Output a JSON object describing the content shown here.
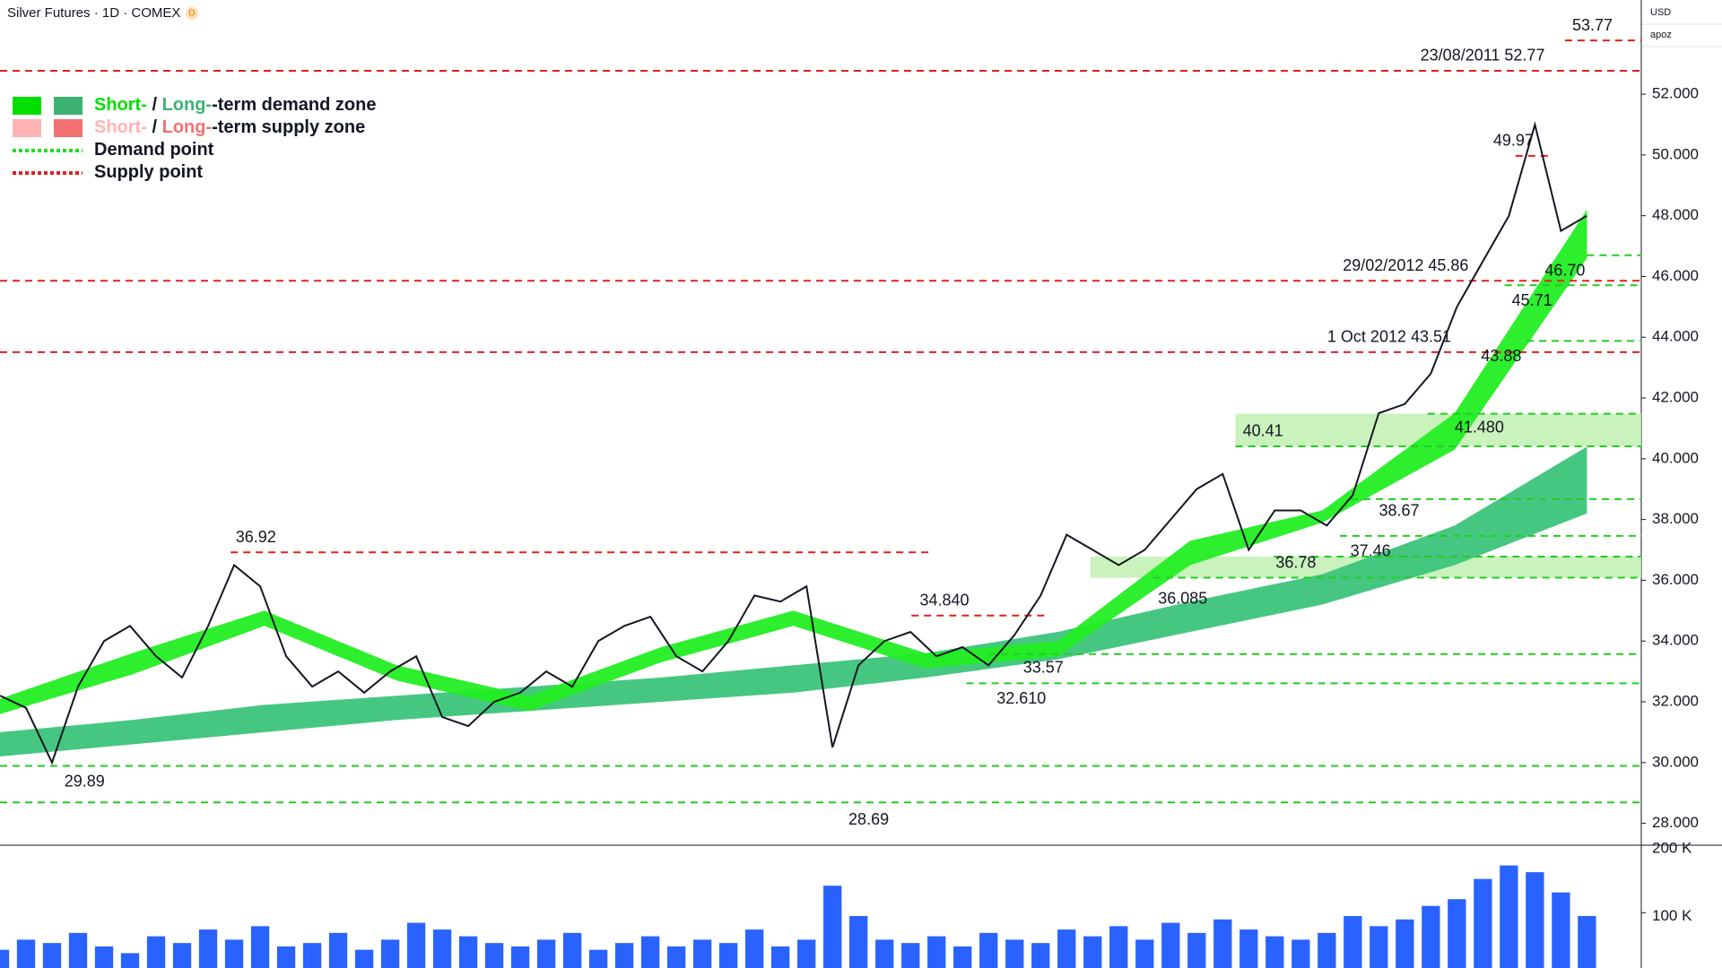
{
  "header": {
    "symbol": "Silver Futures · 1D · COMEX",
    "badge": "D",
    "currency": "USD",
    "account": "apoz"
  },
  "legend": [
    {
      "parts": [
        {
          "text": "Short-",
          "color": "#00e000"
        },
        {
          "text": " / ",
          "color": "#131722"
        },
        {
          "text": "Long-",
          "color": "#3cb371"
        },
        {
          "text": "-term demand zone",
          "color": "#131722"
        }
      ],
      "swatches": [
        "#00e000",
        "#3cb371"
      ]
    },
    {
      "parts": [
        {
          "text": "Short-",
          "color": "#ffb3b3"
        },
        {
          "text": " / ",
          "color": "#131722"
        },
        {
          "text": "Long-",
          "color": "#f27070"
        },
        {
          "text": "-term supply zone",
          "color": "#131722"
        }
      ],
      "swatches": [
        "#ffb3b3",
        "#f27070"
      ]
    },
    {
      "parts": [
        {
          "text": "Demand point",
          "color": "#131722"
        }
      ],
      "dash": "#22dd22"
    },
    {
      "parts": [
        {
          "text": "Supply point",
          "color": "#131722"
        }
      ],
      "dash": "#e02020"
    }
  ],
  "chart_data": [
    {
      "type": "line",
      "color": "#131722",
      "values": [
        32.2,
        31.8,
        30.0,
        32.5,
        34.0,
        34.5,
        33.5,
        32.8,
        34.5,
        36.5,
        35.8,
        33.5,
        32.5,
        33.0,
        32.3,
        33.0,
        33.5,
        31.5,
        31.2,
        32.0,
        32.3,
        33.0,
        32.5,
        34.0,
        34.5,
        34.8,
        33.5,
        33.0,
        34.0,
        35.5,
        35.3,
        35.8,
        30.5,
        33.2,
        34.0,
        34.3,
        33.5,
        33.8,
        33.2,
        34.2,
        35.5,
        37.5,
        37.0,
        36.5,
        37.0,
        38.0,
        39.0,
        39.5,
        37.0,
        38.3,
        38.3,
        37.8,
        38.8,
        41.5,
        41.8,
        42.8,
        45.0,
        46.5,
        48.0,
        51.0,
        47.5,
        48.0
      ],
      "bands": [
        {
          "color": "#3cc47a",
          "upper": [
            31.0,
            31.4,
            31.9,
            32.2,
            32.5,
            32.8,
            33.2,
            33.6,
            34.3,
            35.3,
            36.2,
            37.8,
            40.4
          ],
          "lower": [
            30.2,
            30.6,
            31.0,
            31.4,
            31.7,
            32.0,
            32.3,
            32.8,
            33.4,
            34.3,
            35.2,
            36.5,
            38.2
          ]
        },
        {
          "color": "#22ee22",
          "upper": [
            32.1,
            33.6,
            35.0,
            33.2,
            32.2,
            33.8,
            35.0,
            33.6,
            34.0,
            37.3,
            38.3,
            41.5,
            48.2
          ],
          "lower": [
            31.6,
            32.9,
            34.5,
            32.7,
            31.7,
            33.3,
            34.5,
            33.1,
            33.5,
            36.5,
            37.9,
            40.3,
            46.6
          ]
        }
      ],
      "zones": [
        {
          "low": 40.41,
          "high": 41.48,
          "color": "#bff0b0"
        },
        {
          "low": 36.085,
          "high": 36.78,
          "color": "#bff0b0"
        }
      ],
      "supply_levels": [
        {
          "value": 53.77,
          "label": "53.77"
        },
        {
          "value": 52.77,
          "label": "23/08/2011 52.77"
        },
        {
          "value": 49.97,
          "label": "49.97"
        },
        {
          "value": 45.86,
          "label": "29/02/2012 45.86"
        },
        {
          "value": 43.51,
          "label": "1 Oct 2012 43.51"
        },
        {
          "value": 36.92,
          "label": "36.92"
        },
        {
          "value": 34.84,
          "label": "34.840"
        }
      ],
      "demand_levels": [
        {
          "value": 46.7,
          "label": "46.70"
        },
        {
          "value": 45.71,
          "label": "45.71"
        },
        {
          "value": 43.88,
          "label": "43.88"
        },
        {
          "value": 41.48,
          "label": "41.480"
        },
        {
          "value": 40.41,
          "label": "40.41"
        },
        {
          "value": 38.67,
          "label": "38.67"
        },
        {
          "value": 37.46,
          "label": "37.46"
        },
        {
          "value": 36.78,
          "label": "36.78"
        },
        {
          "value": 36.085,
          "label": "36.085"
        },
        {
          "value": 33.57,
          "label": "33.57"
        },
        {
          "value": 32.61,
          "label": "32.610"
        },
        {
          "value": 29.89,
          "label": "29.89"
        },
        {
          "value": 28.69,
          "label": "28.69"
        }
      ],
      "ylim": [
        27.28,
        55.1
      ],
      "yticks": [
        {
          "value": 28,
          "label": "28.000"
        },
        {
          "value": 30,
          "label": "30.000"
        },
        {
          "value": 32,
          "label": "32.000"
        },
        {
          "value": 34,
          "label": "34.000"
        },
        {
          "value": 36,
          "label": "36.000"
        },
        {
          "value": 38,
          "label": "38.000"
        },
        {
          "value": 40,
          "label": "40.000"
        },
        {
          "value": 42,
          "label": "42.000"
        },
        {
          "value": 44,
          "label": "44.000"
        },
        {
          "value": 46,
          "label": "46.000"
        },
        {
          "value": 48,
          "label": "48.000"
        },
        {
          "value": 50,
          "label": "50.000"
        },
        {
          "value": 52,
          "label": "52.000"
        }
      ]
    },
    {
      "type": "bar",
      "color": "#2962ff",
      "values": [
        45,
        60,
        55,
        70,
        50,
        40,
        65,
        55,
        75,
        60,
        80,
        50,
        55,
        70,
        45,
        60,
        85,
        75,
        65,
        55,
        50,
        60,
        70,
        45,
        55,
        65,
        50,
        60,
        55,
        75,
        50,
        60,
        140,
        95,
        60,
        55,
        65,
        50,
        70,
        60,
        55,
        75,
        65,
        80,
        60,
        85,
        70,
        90,
        75,
        65,
        60,
        70,
        95,
        80,
        90,
        110,
        120,
        150,
        170,
        160,
        130,
        95
      ],
      "ylim": [
        18,
        200
      ],
      "yticks": [
        {
          "value": 100,
          "label": "100 K"
        },
        {
          "value": 200,
          "label": "200 K"
        }
      ]
    }
  ]
}
